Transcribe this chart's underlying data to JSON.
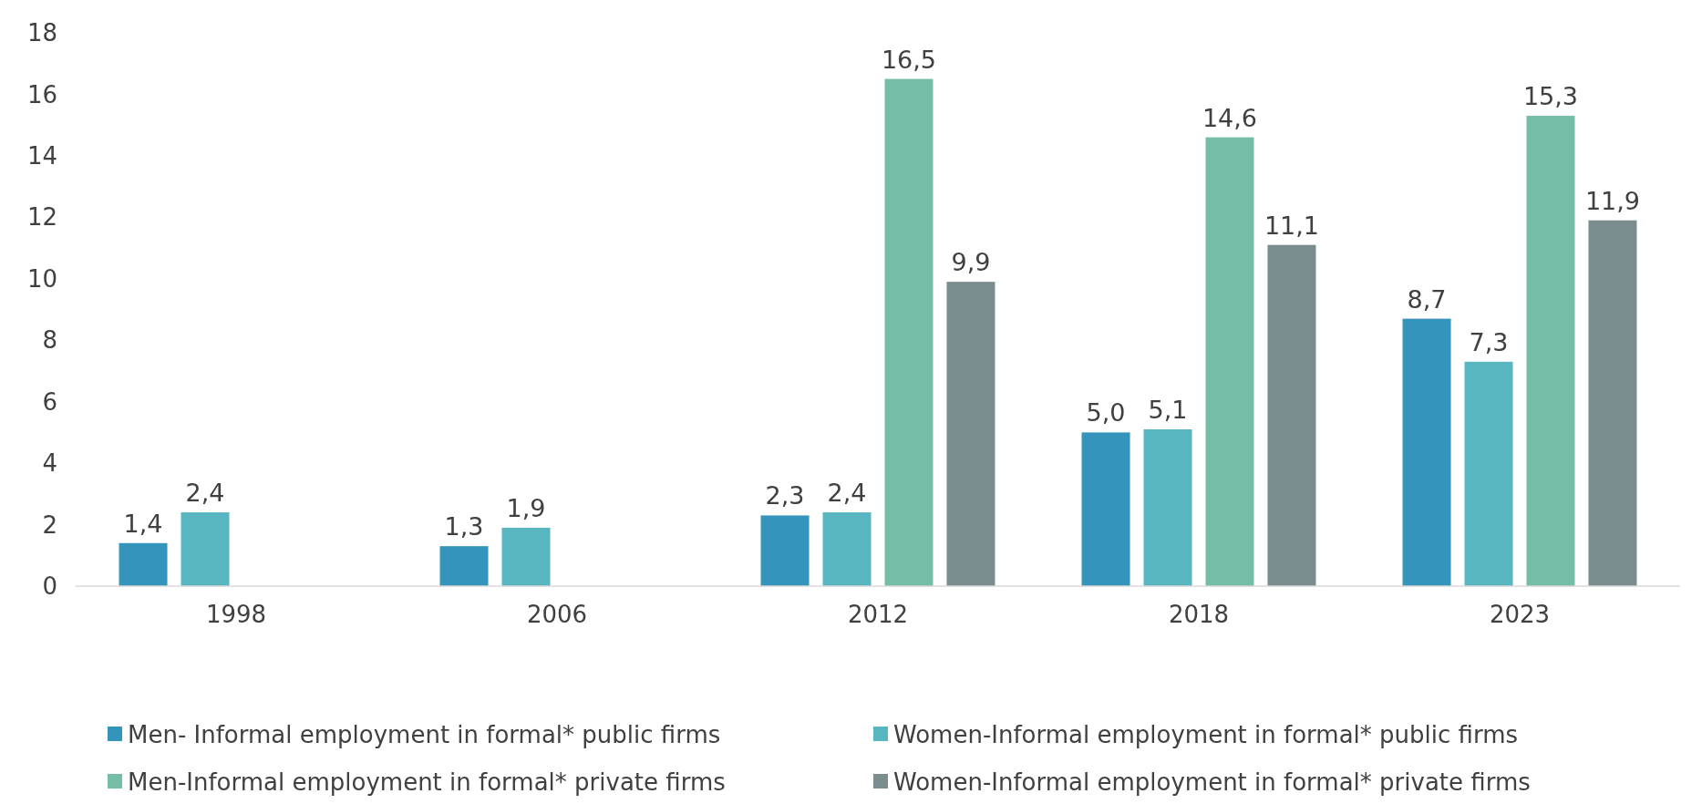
{
  "chart_data": {
    "type": "bar",
    "categories": [
      "1998",
      "2006",
      "2012",
      "2018",
      "2023"
    ],
    "ylim": [
      0,
      18
    ],
    "yticks": [
      0,
      2,
      4,
      6,
      8,
      10,
      12,
      14,
      16,
      18
    ],
    "grid": false,
    "legend": "bottom",
    "series": [
      {
        "name": "Men- Informal employment in formal* public firms",
        "color": "#3594bb",
        "values": [
          1.4,
          1.3,
          2.3,
          5.0,
          8.7
        ],
        "value_labels": [
          "1,4",
          "1,3",
          "2,3",
          "5,0",
          "8,7"
        ]
      },
      {
        "name": "Women-Informal employment in formal* public firms",
        "color": "#58b6c0",
        "values": [
          2.4,
          1.9,
          2.4,
          5.1,
          7.3
        ],
        "value_labels": [
          "2,4",
          "1,9",
          "2,4",
          "5,1",
          "7,3"
        ]
      },
      {
        "name": "Men-Informal employment in formal* private firms",
        "color": "#75bda7",
        "values": [
          null,
          null,
          16.5,
          14.6,
          15.3
        ],
        "value_labels": [
          null,
          null,
          "16,5",
          "14,6",
          "15,3"
        ]
      },
      {
        "name": "Women-Informal employment in formal* private firms",
        "color": "#7a8c8e",
        "values": [
          null,
          null,
          9.9,
          11.1,
          11.9
        ],
        "value_labels": [
          null,
          null,
          "9,9",
          "11,1",
          "11,9"
        ]
      }
    ]
  }
}
